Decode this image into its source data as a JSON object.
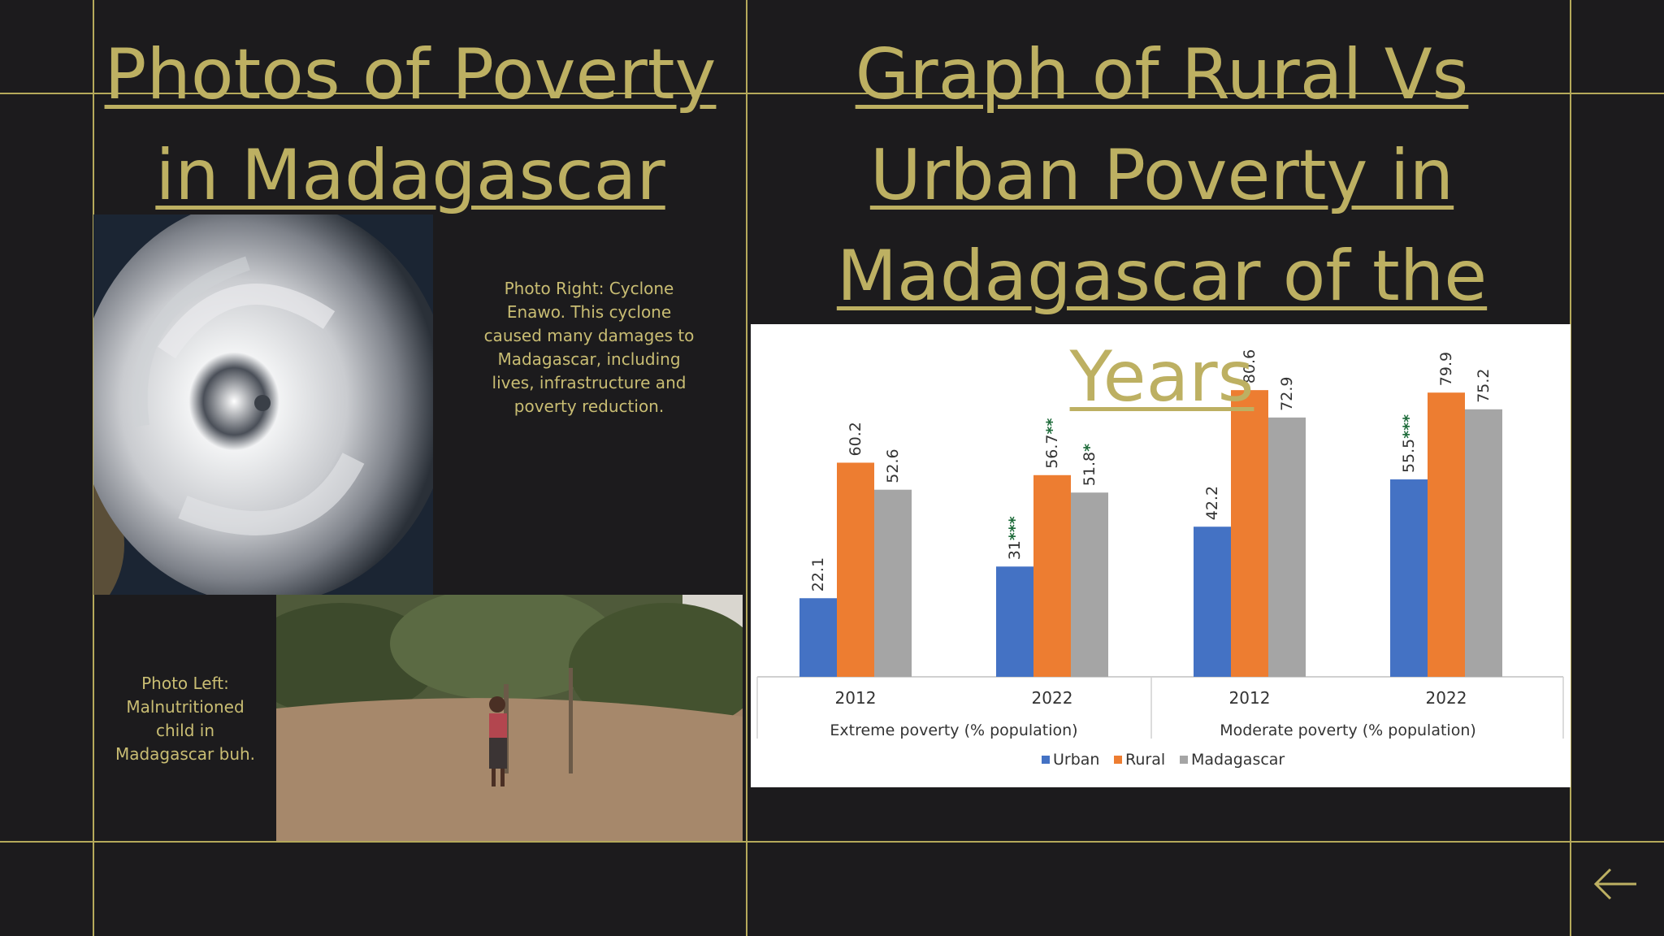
{
  "slide": {
    "left_title": "Photos of Poverty in Madagascar",
    "right_title": "Graph of  Rural Vs Urban Poverty in Madagascar of the Years",
    "caption_right": "Photo Right: Cyclone Enawo. This cyclone caused many damages to Madagascar, including lives, infrastructure and poverty reduction.",
    "caption_left": "Photo Left: Malnutritioned child in Madagascar buh."
  },
  "photos": [
    {
      "name": "cyclone-satellite-photo",
      "subject": "Cyclone Enawo satellite image"
    },
    {
      "name": "child-photo",
      "subject": "Malnutritioned child standing in dry village"
    }
  ],
  "nav": {
    "back_icon": "arrow-left-icon"
  },
  "colors": {
    "background": "#1c1b1d",
    "accent": "#bdb062",
    "urban": "#4472c4",
    "rural": "#ed7d31",
    "madagascar": "#a5a5a5"
  },
  "chart_data": {
    "type": "bar",
    "groups": [
      "Extreme poverty (% population)",
      "Moderate poverty (% population)"
    ],
    "categories": [
      "2012",
      "2022",
      "2012",
      "2022"
    ],
    "series": [
      {
        "name": "Urban",
        "values": [
          22.1,
          31,
          42.2,
          55.5
        ],
        "labels": [
          "22.1",
          "31",
          "42.2",
          "55.5"
        ],
        "marks": [
          "",
          "***",
          "",
          "***"
        ],
        "color": "#4472c4"
      },
      {
        "name": "Rural",
        "values": [
          60.2,
          56.7,
          80.6,
          79.9
        ],
        "labels": [
          "60.2",
          "56.7",
          "80.6",
          "79.9"
        ],
        "marks": [
          "",
          "**",
          "",
          ""
        ],
        "color": "#ed7d31"
      },
      {
        "name": "Madagascar",
        "values": [
          52.6,
          51.8,
          72.9,
          75.2
        ],
        "labels": [
          "52.6",
          "51.8",
          "72.9",
          "75.2"
        ],
        "marks": [
          "",
          "*",
          "",
          ""
        ],
        "color": "#a5a5a5"
      }
    ],
    "ylim": [
      0,
      90
    ],
    "legend": "bottom",
    "grid": false
  }
}
